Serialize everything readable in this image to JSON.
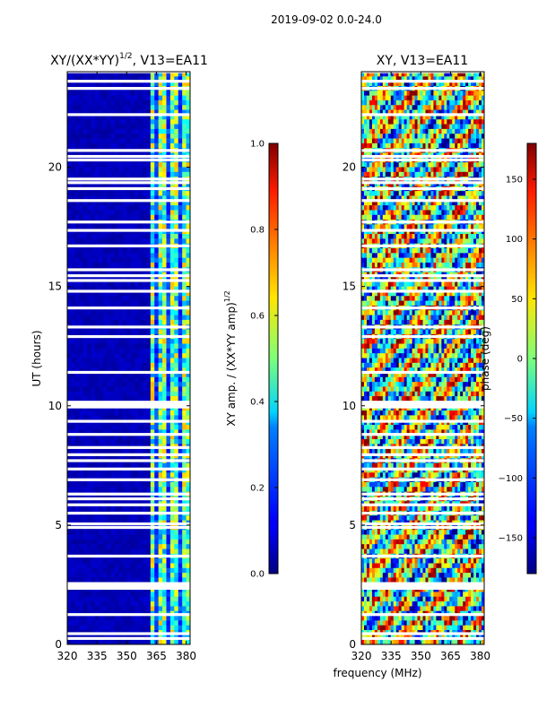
{
  "suptitle": "2019-09-02 0.0-24.0",
  "shared_xlabel": "frequency (MHz)",
  "chart_data": [
    {
      "type": "heatmap",
      "title_main": "XY/(XX*YY)",
      "title_sup": "1/2",
      "title_tail": ", V13=EA11",
      "ylabel": "UT (hours)",
      "xlim": [
        320,
        382
      ],
      "ylim": [
        0,
        24
      ],
      "xticks": [
        "320",
        "335",
        "350",
        "365",
        "380"
      ],
      "xtick_values": [
        320,
        335,
        350,
        365,
        380
      ],
      "yticks": [
        "0",
        "5",
        "10",
        "15",
        "20"
      ],
      "ytick_values": [
        0,
        5,
        10,
        15,
        20
      ],
      "colorbar": {
        "label_main": "XY amp. / (XX*YY amp)",
        "label_sup": "1/2",
        "range": [
          0.0,
          1.0
        ],
        "ticks": [
          "0.0",
          "0.2",
          "0.4",
          "0.6",
          "0.8",
          "1.0"
        ],
        "tick_values": [
          0.0,
          0.2,
          0.4,
          0.6,
          0.8,
          1.0
        ]
      },
      "flagged_hours": [
        0.25,
        0.45,
        1.25,
        2.35,
        2.45,
        2.55,
        3.7,
        4.9,
        5.05,
        5.5,
        5.85,
        6.1,
        6.3,
        6.9,
        7.35,
        7.7,
        7.95,
        8.25,
        8.8,
        9.35,
        9.95,
        10.05,
        10.15,
        11.4,
        12.9,
        13.3,
        14.1,
        14.8,
        15.25,
        15.45,
        15.7,
        16.7,
        17.35,
        17.7,
        18.6,
        19.1,
        19.35,
        19.5,
        20.3,
        20.45,
        20.7,
        22.2,
        23.3,
        24.0,
        23.6
      ],
      "notes": "Amplitude is near 0 (dark blue) below ~362 MHz; channels 362-382 MHz show mixed values 0.2-0.7"
    },
    {
      "type": "heatmap",
      "title_main": "XY, V13=EA11",
      "ylabel": "",
      "xlim": [
        320,
        382
      ],
      "ylim": [
        0,
        24
      ],
      "xticks": [
        "320",
        "335",
        "350",
        "365",
        "380"
      ],
      "xtick_values": [
        320,
        335,
        350,
        365,
        380
      ],
      "yticks": [
        "0",
        "5",
        "10",
        "15",
        "20"
      ],
      "ytick_values": [
        0,
        5,
        10,
        15,
        20
      ],
      "colorbar": {
        "label": "phase (deg)",
        "range": [
          -180,
          180
        ],
        "ticks": [
          "−150",
          "−100",
          "−50",
          "0",
          "50",
          "100",
          "150"
        ],
        "tick_values": [
          -150,
          -100,
          -50,
          0,
          50,
          100,
          150
        ]
      },
      "flagged_hours": [
        0.25,
        0.45,
        1.25,
        2.35,
        2.45,
        2.55,
        3.7,
        4.9,
        5.05,
        5.5,
        5.85,
        6.1,
        6.3,
        6.9,
        7.35,
        7.7,
        7.95,
        8.25,
        8.8,
        9.35,
        9.95,
        10.05,
        10.15,
        11.4,
        12.9,
        13.3,
        14.1,
        14.8,
        15.25,
        15.45,
        15.7,
        16.7,
        17.35,
        17.7,
        18.6,
        19.1,
        19.35,
        19.5,
        20.3,
        20.45,
        20.7,
        22.2,
        23.3,
        24.0,
        23.6
      ],
      "notes": "Phase is noisy across full band, spanning -180 to 180 degrees"
    }
  ]
}
